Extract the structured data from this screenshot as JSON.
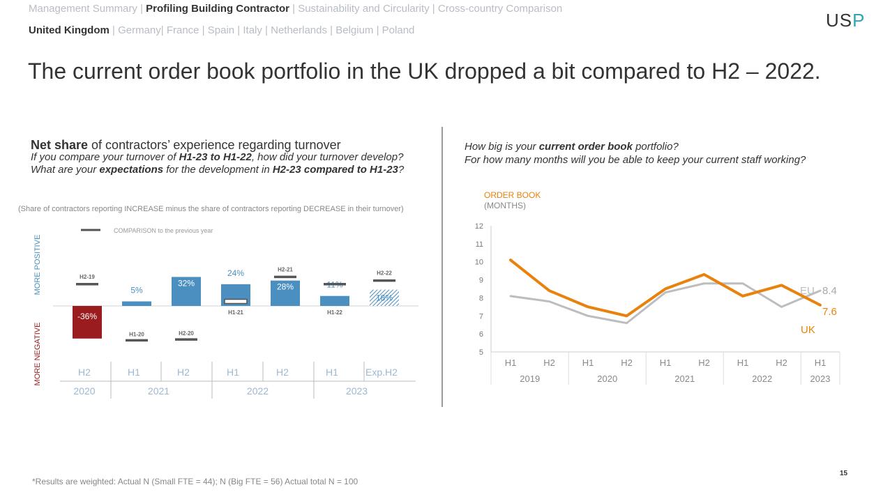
{
  "nav": {
    "row1": [
      "Management Summary",
      "Profiling Building Contractor",
      "Sustainability and Circularity",
      "Cross-country Comparison"
    ],
    "row1_active": 1,
    "row2": [
      "United Kingdom",
      "Germany",
      "France",
      "Spain",
      "Italy",
      "Netherlands",
      "Belgium",
      "Poland"
    ],
    "row2_active": 0
  },
  "logo": {
    "text_a": "US",
    "text_b": "P"
  },
  "title": "The current order book portfolio in the UK dropped a bit compared to H2 – 2022.",
  "left": {
    "heading_bold": "Net share",
    "heading_rest": " of contractors’ experience regarding turnover",
    "q1_a": "If you compare your turnover of ",
    "q1_b": "H1-23 to H1-22",
    "q1_c": ", how did your turnover develop?",
    "q2_a": "What are your ",
    "q2_b": "expectations",
    "q2_c": " for the development in ",
    "q2_d": "H2-23 compared to H1-23",
    "q2_e": "?",
    "note": "(Share of contractors reporting INCREASE minus the share of contractors reporting DECREASE in their turnover)"
  },
  "right": {
    "q1_a": "How big is your ",
    "q1_b": "current order book",
    "q1_c": " portfolio?",
    "q2": "For how many months will you be able to keep your current staff working?"
  },
  "chart_data": [
    {
      "type": "bar",
      "legend": "COMPARISON to the previous year",
      "positive_label": "MORE POSITIVE",
      "negative_label": "MORE NEGATIVE",
      "categories": [
        "H2",
        "H1",
        "H2",
        "H1",
        "H2",
        "H1",
        "Exp.H2"
      ],
      "year_groups": [
        {
          "label": "2020",
          "span": 1
        },
        {
          "label": "2021",
          "span": 2
        },
        {
          "label": "2022",
          "span": 2
        },
        {
          "label": "2023",
          "span": 2
        }
      ],
      "values": [
        -36,
        5,
        32,
        24,
        28,
        11,
        18
      ],
      "value_labels": [
        "-36%",
        "5%",
        "32%",
        "24%",
        "28%",
        "11%",
        "18%"
      ],
      "comparison": [
        {
          "label": "H2-19",
          "value": 24
        },
        {
          "label": "H1-20",
          "value": -38
        },
        {
          "label": "H2-20",
          "value": -37
        },
        {
          "label": "H1-21",
          "value": 5
        },
        {
          "label": "H2-21",
          "value": 32
        },
        {
          "label": "H1-22",
          "value": 24
        },
        {
          "label": "H2-22",
          "value": 28
        }
      ],
      "colors": {
        "positive": "#4a8fc0",
        "negative": "#9b1c1f",
        "comparison": "#555555",
        "category": "#9db8d2"
      }
    },
    {
      "type": "line",
      "title": "ORDER BOOK",
      "subtitle": "(MONTHS)",
      "ylim": [
        5,
        12
      ],
      "yticks": [
        5,
        6,
        7,
        8,
        9,
        10,
        11,
        12
      ],
      "x": [
        "H1",
        "H2",
        "H1",
        "H2",
        "H1",
        "H2",
        "H1",
        "H2",
        "H1"
      ],
      "year_groups": [
        {
          "label": "2019",
          "span": 2
        },
        {
          "label": "2020",
          "span": 2
        },
        {
          "label": "2021",
          "span": 2
        },
        {
          "label": "2022",
          "span": 2
        },
        {
          "label": "2023",
          "span": 1
        }
      ],
      "series": [
        {
          "name": "UK",
          "values": [
            10.1,
            8.4,
            7.5,
            7.0,
            8.5,
            9.3,
            8.1,
            8.7,
            7.6
          ],
          "end_label": "7.6",
          "color": "#e8820c"
        },
        {
          "name": "EU",
          "values": [
            8.1,
            7.8,
            7.0,
            6.6,
            8.3,
            8.8,
            8.8,
            7.5,
            8.4
          ],
          "end_label": "8.4",
          "color": "#bdbdbd"
        }
      ]
    }
  ],
  "footnote": "*Results are weighted: Actual N (Small FTE = 44); N (Big FTE = 56) Actual total N = 100",
  "page_number": "15"
}
